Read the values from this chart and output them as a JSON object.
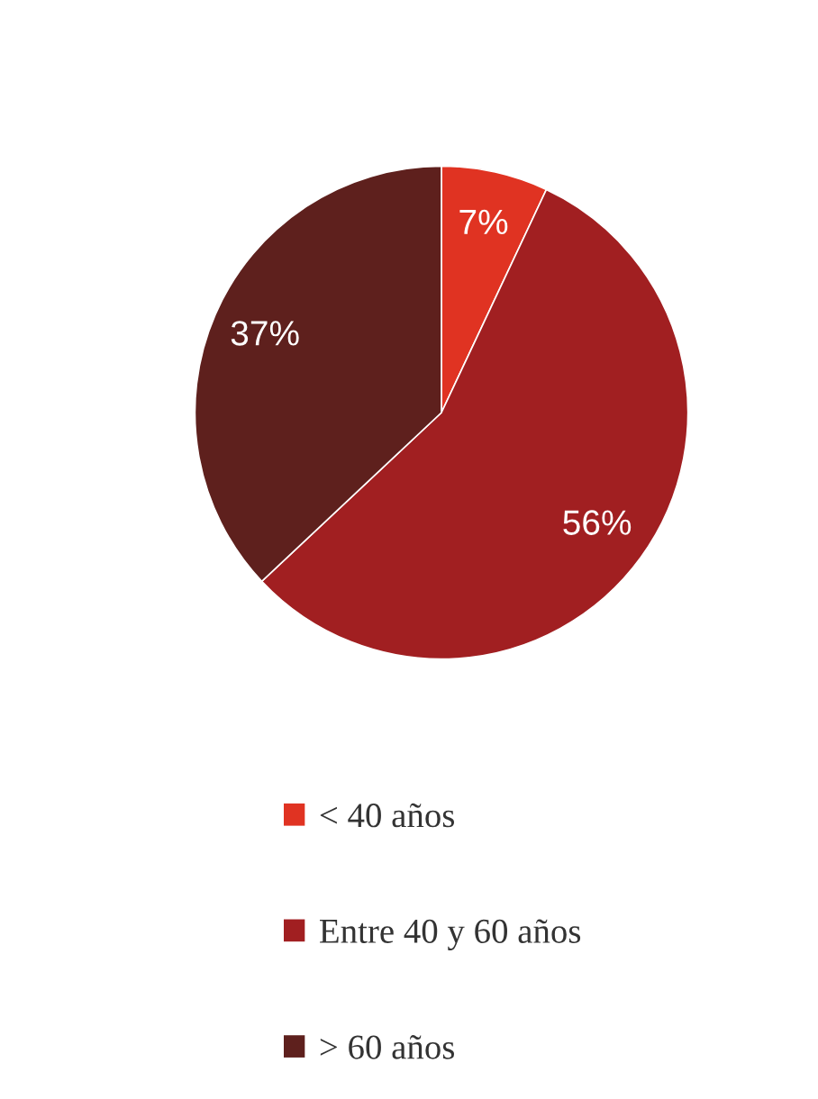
{
  "chart_data": {
    "type": "pie",
    "categories": [
      "< 40 años",
      "Entre 40 y 60 años",
      "> 60 años"
    ],
    "values": [
      7,
      56,
      37
    ],
    "colors": [
      "#e03322",
      "#a11f21",
      "#5e201d"
    ],
    "value_labels": [
      "7%",
      "56%",
      "37%"
    ],
    "legend": "bottom"
  }
}
